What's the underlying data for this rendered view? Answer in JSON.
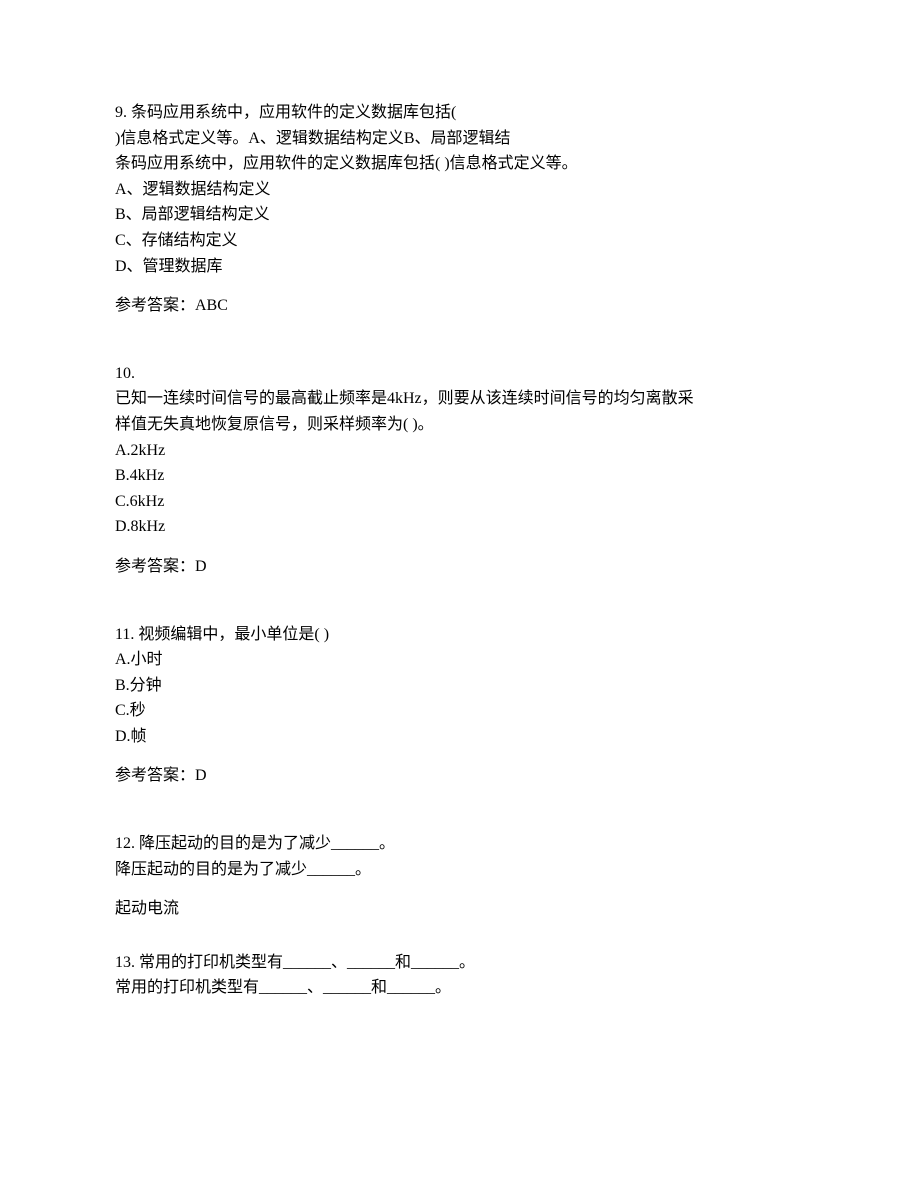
{
  "q9": {
    "number": "9.",
    "stem_line1": "条码应用系统中，应用软件的定义数据库包括(",
    "stem_line2": ")信息格式定义等。A、逻辑数据结构定义B、局部逻辑结",
    "stem_line3": "条码应用系统中，应用软件的定义数据库包括(  )信息格式定义等。",
    "optA": "A、逻辑数据结构定义",
    "optB": "B、局部逻辑结构定义",
    "optC": "C、存储结构定义",
    "optD": "D、管理数据库",
    "answer_label": "参考答案：ABC"
  },
  "q10": {
    "number": "10.",
    "stem_line1": "已知一连续时间信号的最高截止频率是4kHz，则要从该连续时间信号的均匀离散采",
    "stem_line2": "样值无失真地恢复原信号，则采样频率为(  )。",
    "optA": "A.2kHz",
    "optB": "B.4kHz",
    "optC": "C.6kHz",
    "optD": "D.8kHz",
    "answer_label": "参考答案：D"
  },
  "q11": {
    "number": "11.",
    "stem": "视频编辑中，最小单位是(  )",
    "optA": "A.小时",
    "optB": "B.分钟",
    "optC": "C.秒",
    "optD": "D.帧",
    "answer_label": "参考答案：D"
  },
  "q12": {
    "number": "12.",
    "stem_line1": "降压起动的目的是为了减少______。",
    "stem_line2": "降压起动的目的是为了减少______。",
    "answer": "起动电流"
  },
  "q13": {
    "number": "13.",
    "stem_line1": "常用的打印机类型有______、______和______。",
    "stem_line2": "常用的打印机类型有______、______和______。"
  }
}
